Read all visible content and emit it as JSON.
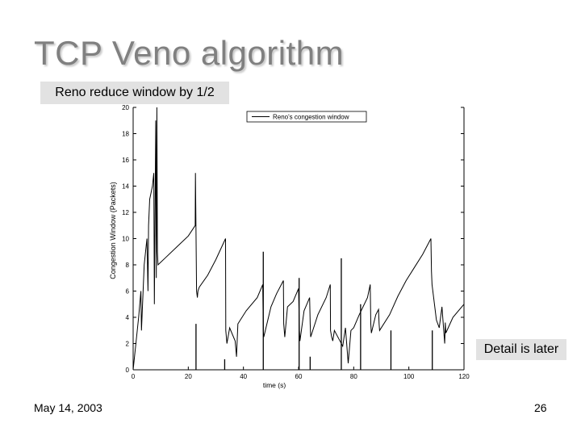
{
  "slide": {
    "title": "TCP Veno algorithm",
    "callout_top": "Reno reduce window by 1/2",
    "callout_right": "Detail is later",
    "date": "May 14, 2003",
    "page_number": "26"
  },
  "chart_data": {
    "type": "line",
    "xlabel": "time (s)",
    "ylabel": "Congestion Window (Packets)",
    "xlim": [
      0,
      120
    ],
    "ylim": [
      0,
      20
    ],
    "xticks": [
      0,
      20,
      40,
      60,
      80,
      100,
      120
    ],
    "yticks": [
      0,
      2,
      4,
      6,
      8,
      10,
      12,
      14,
      16,
      18,
      20
    ],
    "legend_position": "top-right",
    "line_color": "#000000",
    "series": [
      {
        "name": "Reno's congestion window",
        "x": [
          0,
          1,
          2,
          2.8,
          3,
          4,
          5,
          5.4,
          5.6,
          6,
          7,
          7.5,
          7.7,
          8.2,
          8.4,
          8.6,
          8.8,
          9,
          12,
          16,
          20,
          22.5,
          22.6,
          23,
          23.3,
          23.5,
          24,
          27,
          30,
          33.5,
          33.6,
          34,
          35,
          37,
          37.5,
          38,
          41,
          45,
          47,
          47.2,
          47.4,
          50,
          52,
          54.5,
          54.6,
          55,
          56,
          58,
          60,
          60.3,
          60.5,
          62,
          64,
          64.2,
          64.4,
          67,
          70,
          71.5,
          71.6,
          72,
          72.4,
          73,
          75,
          76,
          77,
          78,
          79,
          80,
          82,
          85,
          86,
          86.2,
          86.4,
          88,
          89,
          89.2,
          89.4,
          93,
          96,
          99,
          102,
          105,
          108,
          108.2,
          108.4,
          110,
          111,
          112,
          113,
          113.2,
          113.4,
          116,
          120
        ],
        "y": [
          0,
          2,
          4,
          6,
          3,
          8,
          10,
          6,
          11,
          13,
          14,
          15,
          5,
          19,
          7,
          20,
          9,
          8,
          8.6,
          9.4,
          10.2,
          11,
          15,
          6,
          5.5,
          6,
          6.3,
          7.2,
          8.4,
          10,
          3,
          2,
          3.2,
          2.2,
          1,
          3.5,
          4.5,
          5.5,
          6.5,
          3,
          2.5,
          4.8,
          5.8,
          6.8,
          3.5,
          2.5,
          4.8,
          5.2,
          6.2,
          3,
          2.2,
          4.5,
          5.5,
          3.5,
          2.5,
          4.2,
          5.5,
          6.5,
          3,
          2.5,
          2.2,
          3,
          2.2,
          1.8,
          3.2,
          0.5,
          3,
          3.2,
          4.2,
          5.5,
          6.5,
          3.5,
          2.8,
          4.2,
          4.6,
          3.5,
          3,
          4.2,
          5.6,
          6.8,
          7.8,
          8.8,
          10,
          7.5,
          6.5,
          3.8,
          3.2,
          4.8,
          2,
          3.6,
          2.8,
          4,
          5
        ]
      }
    ],
    "spikes": [
      {
        "x": 22.8,
        "y": 3.5
      },
      {
        "x": 33.2,
        "y": 0.8
      },
      {
        "x": 47.2,
        "y": 9
      },
      {
        "x": 60.2,
        "y": 7
      },
      {
        "x": 64.2,
        "y": 1
      },
      {
        "x": 75.5,
        "y": 8.5
      },
      {
        "x": 82.5,
        "y": 5
      },
      {
        "x": 93.5,
        "y": 3
      },
      {
        "x": 108.5,
        "y": 3
      }
    ]
  }
}
